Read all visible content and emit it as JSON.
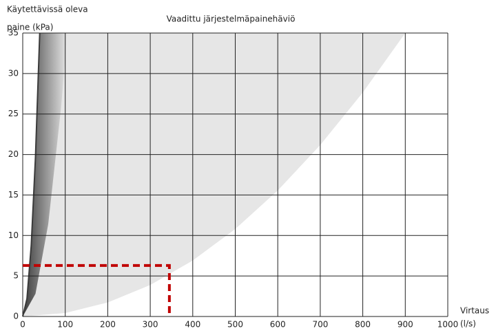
{
  "chart_data": {
    "type": "area",
    "title": "Vaadittu järjestelmäpainehäviö",
    "ylabel": [
      "Käytettävissä oleva",
      "paine (kPa)"
    ],
    "xlabel": [
      "Virtaus",
      "(l/s)"
    ],
    "xlim": [
      0,
      1000
    ],
    "ylim": [
      0,
      35
    ],
    "xticks": [
      0,
      100,
      200,
      300,
      400,
      500,
      600,
      700,
      800,
      900,
      1000
    ],
    "yticks": [
      0,
      5,
      10,
      15,
      20,
      25,
      30,
      35
    ],
    "grid": true,
    "region_color": "#e6e6e6",
    "band_color": "#3a3a3a",
    "inner": {
      "x": [
        0,
        10,
        20,
        30,
        40
      ],
      "y": [
        0,
        2.2,
        8.75,
        19.7,
        35
      ]
    },
    "fade": {
      "x": [
        0,
        30,
        60,
        90,
        105
      ],
      "y": [
        0,
        2.8,
        11.4,
        25.7,
        35
      ]
    },
    "outer": {
      "x": [
        0,
        100,
        200,
        300,
        400,
        500,
        600,
        700,
        800,
        900
      ],
      "y": [
        0,
        0.43,
        1.73,
        3.89,
        6.91,
        10.8,
        15.56,
        21.17,
        27.65,
        35
      ]
    },
    "marker": {
      "x": [
        0,
        345,
        345
      ],
      "y": [
        6.3,
        6.3,
        0
      ],
      "color": "#c00000"
    }
  }
}
